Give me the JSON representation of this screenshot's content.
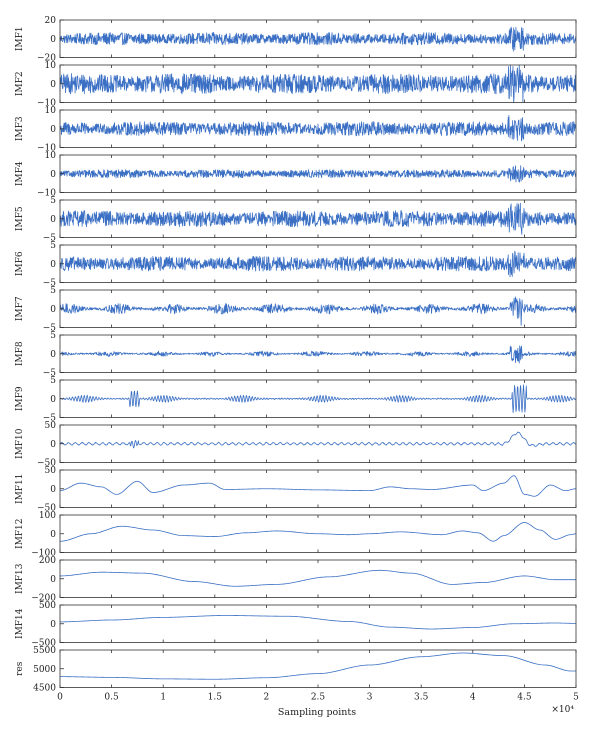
{
  "chart_data": {
    "type": "line",
    "xlabel": "Sampling points",
    "x_multiplier": "×10⁴",
    "xlim": [
      0,
      5
    ],
    "x_ticks": [
      "0",
      "0.5",
      "1",
      "1.5",
      "2",
      "2.5",
      "3",
      "3.5",
      "4",
      "4.5",
      "5"
    ],
    "colors": {
      "signal": "#3a6fc4"
    },
    "panels": [
      {
        "name": "IMF1",
        "ylim": [
          -20,
          20
        ],
        "y_ticks": [
          "20",
          "0",
          "−20"
        ],
        "style": "noise",
        "amplitude": 6
      },
      {
        "name": "IMF2",
        "ylim": [
          -10,
          10
        ],
        "y_ticks": [
          "10",
          "0",
          "−10"
        ],
        "style": "noise",
        "amplitude": 5
      },
      {
        "name": "IMF3",
        "ylim": [
          -10,
          10
        ],
        "y_ticks": [
          "10",
          "0",
          "−10"
        ],
        "style": "noise",
        "amplitude": 3.5
      },
      {
        "name": "IMF4",
        "ylim": [
          -10,
          10
        ],
        "y_ticks": [
          "10",
          "0",
          "−10"
        ],
        "style": "noise",
        "amplitude": 2
      },
      {
        "name": "IMF5",
        "ylim": [
          -5,
          5
        ],
        "y_ticks": [
          "5",
          "0",
          "−5"
        ],
        "style": "noise",
        "amplitude": 2
      },
      {
        "name": "IMF6",
        "ylim": [
          -5,
          5
        ],
        "y_ticks": [
          "5",
          "0",
          "−5"
        ],
        "style": "noise",
        "amplitude": 1.8
      },
      {
        "name": "IMF7",
        "ylim": [
          -5,
          5
        ],
        "y_ticks": [
          "5",
          "0",
          "−5"
        ],
        "style": "bursty",
        "amplitude": 1.2
      },
      {
        "name": "IMF8",
        "ylim": [
          -5,
          5
        ],
        "y_ticks": [
          "5",
          "0",
          "−5"
        ],
        "style": "bursty",
        "amplitude": 0.6
      },
      {
        "name": "IMF9",
        "ylim": [
          -5,
          5
        ],
        "y_ticks": [
          "5",
          "0",
          "−5"
        ],
        "style": "sparse",
        "amplitude": 0.5
      },
      {
        "name": "IMF10",
        "ylim": [
          -50,
          50
        ],
        "y_ticks": [
          "50",
          "0",
          "−50"
        ],
        "style": "ripple",
        "amplitude": 3
      },
      {
        "name": "IMF11",
        "ylim": [
          -50,
          50
        ],
        "y_ticks": [
          "50",
          "0",
          "−50"
        ],
        "style": "wave",
        "points": [
          [
            0,
            -5
          ],
          [
            0.2,
            15
          ],
          [
            0.4,
            5
          ],
          [
            0.55,
            -15
          ],
          [
            0.75,
            20
          ],
          [
            0.9,
            -10
          ],
          [
            1.2,
            10
          ],
          [
            1.45,
            15
          ],
          [
            1.6,
            -2
          ],
          [
            2,
            0
          ],
          [
            2.5,
            -3
          ],
          [
            3,
            -5
          ],
          [
            3.2,
            5
          ],
          [
            3.4,
            0
          ],
          [
            3.6,
            -2
          ],
          [
            4,
            10
          ],
          [
            4.1,
            -5
          ],
          [
            4.3,
            15
          ],
          [
            4.4,
            35
          ],
          [
            4.5,
            -15
          ],
          [
            4.6,
            -20
          ],
          [
            4.75,
            10
          ],
          [
            4.9,
            -5
          ],
          [
            5,
            0
          ]
        ]
      },
      {
        "name": "IMF12",
        "ylim": [
          -100,
          100
        ],
        "y_ticks": [
          "100",
          "0",
          "−100"
        ],
        "style": "wave",
        "points": [
          [
            0,
            -40
          ],
          [
            0.3,
            0
          ],
          [
            0.6,
            40
          ],
          [
            0.9,
            20
          ],
          [
            1.2,
            -10
          ],
          [
            1.5,
            -15
          ],
          [
            1.8,
            5
          ],
          [
            2.1,
            15
          ],
          [
            2.5,
            0
          ],
          [
            2.8,
            -5
          ],
          [
            3,
            0
          ],
          [
            3.3,
            10
          ],
          [
            3.7,
            -5
          ],
          [
            3.9,
            15
          ],
          [
            4.05,
            5
          ],
          [
            4.2,
            -40
          ],
          [
            4.3,
            -10
          ],
          [
            4.5,
            60
          ],
          [
            4.65,
            20
          ],
          [
            4.8,
            -30
          ],
          [
            4.95,
            -5
          ],
          [
            5,
            0
          ]
        ]
      },
      {
        "name": "IMF13",
        "ylim": [
          -200,
          200
        ],
        "y_ticks": [
          "200",
          "0",
          "−200"
        ],
        "style": "wave",
        "points": [
          [
            0,
            30
          ],
          [
            0.4,
            70
          ],
          [
            0.8,
            60
          ],
          [
            1.3,
            -30
          ],
          [
            1.7,
            -80
          ],
          [
            2.1,
            -60
          ],
          [
            2.6,
            20
          ],
          [
            3.1,
            90
          ],
          [
            3.4,
            60
          ],
          [
            3.8,
            -60
          ],
          [
            4.1,
            -40
          ],
          [
            4.5,
            30
          ],
          [
            4.8,
            -10
          ],
          [
            5,
            -10
          ]
        ]
      },
      {
        "name": "IMF14",
        "ylim": [
          -500,
          500
        ],
        "y_ticks": [
          "500",
          "0",
          "−500"
        ],
        "style": "wave",
        "points": [
          [
            0,
            50
          ],
          [
            0.5,
            100
          ],
          [
            1,
            170
          ],
          [
            1.6,
            220
          ],
          [
            2.2,
            200
          ],
          [
            2.8,
            60
          ],
          [
            3.2,
            -90
          ],
          [
            3.6,
            -140
          ],
          [
            4,
            -100
          ],
          [
            4.4,
            0
          ],
          [
            4.8,
            20
          ],
          [
            5,
            10
          ]
        ]
      },
      {
        "name": "res",
        "ylim": [
          4500,
          5500
        ],
        "y_ticks": [
          "5500",
          "5000",
          "4500"
        ],
        "style": "wave",
        "points": [
          [
            0,
            4790
          ],
          [
            0.5,
            4770
          ],
          [
            1,
            4730
          ],
          [
            1.5,
            4720
          ],
          [
            2,
            4760
          ],
          [
            2.5,
            4870
          ],
          [
            3,
            5100
          ],
          [
            3.5,
            5320
          ],
          [
            3.9,
            5420
          ],
          [
            4.3,
            5350
          ],
          [
            4.7,
            5100
          ],
          [
            4.95,
            4940
          ]
        ]
      }
    ]
  }
}
